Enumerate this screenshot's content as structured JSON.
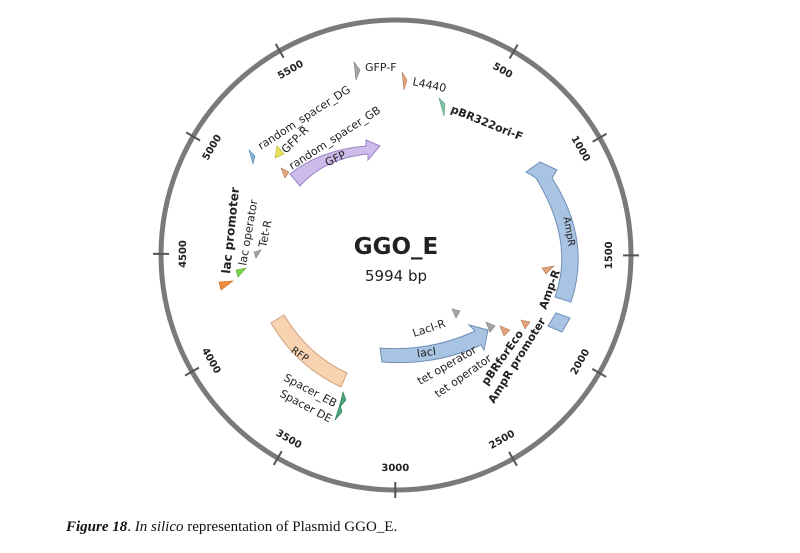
{
  "plasmid": {
    "name": "GGO_E",
    "size_label": "5994 bp",
    "length_bp": 5994
  },
  "ticks": [
    "500",
    "1000",
    "1500",
    "2000",
    "2500",
    "3000",
    "3500",
    "4000",
    "4500",
    "5000",
    "5500"
  ],
  "features": [
    {
      "label": "AmpR",
      "type": "gene",
      "color": "#a9c4e3",
      "stroke": "#6f8fb8"
    },
    {
      "label": "lacI",
      "type": "gene",
      "color": "#a9c4e3",
      "stroke": "#6f8fb8"
    },
    {
      "label": "GFP",
      "type": "gene",
      "color": "#cdbbea",
      "stroke": "#9a84c4"
    },
    {
      "label": "RFP",
      "type": "gene",
      "color": "#f8d3b2",
      "stroke": "#d2a27c"
    },
    {
      "label": "AmpR promoter",
      "type": "promoter",
      "color": "#a9c4e3"
    }
  ],
  "labels": {
    "gfp_f": "GFP-F",
    "l4440": "L4440",
    "pbr322ori_f": "pBR322ori-F",
    "random_spacer_dg": "random_spacer_DG",
    "gfp_r": "GFP-R",
    "random_spacer_gb": "random_spacer_GB",
    "lac_promoter": "lac promoter",
    "lac_operator": "lac operator",
    "tet_r": "Tet-R",
    "amp_r": "Amp-R",
    "laci_r": "LacI-R",
    "tet_operator_1": "tet operator",
    "tet_operator_2": "tet operator",
    "pbrforeco": "pBRforEco",
    "ampr_promoter": "AmpR promoter",
    "spacer_eb": "Spacer_EB",
    "spacer_de": "Spacer DE"
  },
  "colors": {
    "backbone": "#7a7a7a",
    "primer_gray": "#a6a6a6",
    "primer_orange": "#e3a27e",
    "primer_teal": "#82c6a8",
    "primer_yellow": "#ece25a",
    "primer_blue": "#84b3d6",
    "lac_promoter": "#f08b3a",
    "lac_operator": "#7bd44a",
    "spacer_green": "#4aa57a"
  },
  "caption": {
    "figure": "Figure 18",
    "sep": ". ",
    "italic": "In silico",
    "rest": " representation of Plasmid GGO_E."
  }
}
